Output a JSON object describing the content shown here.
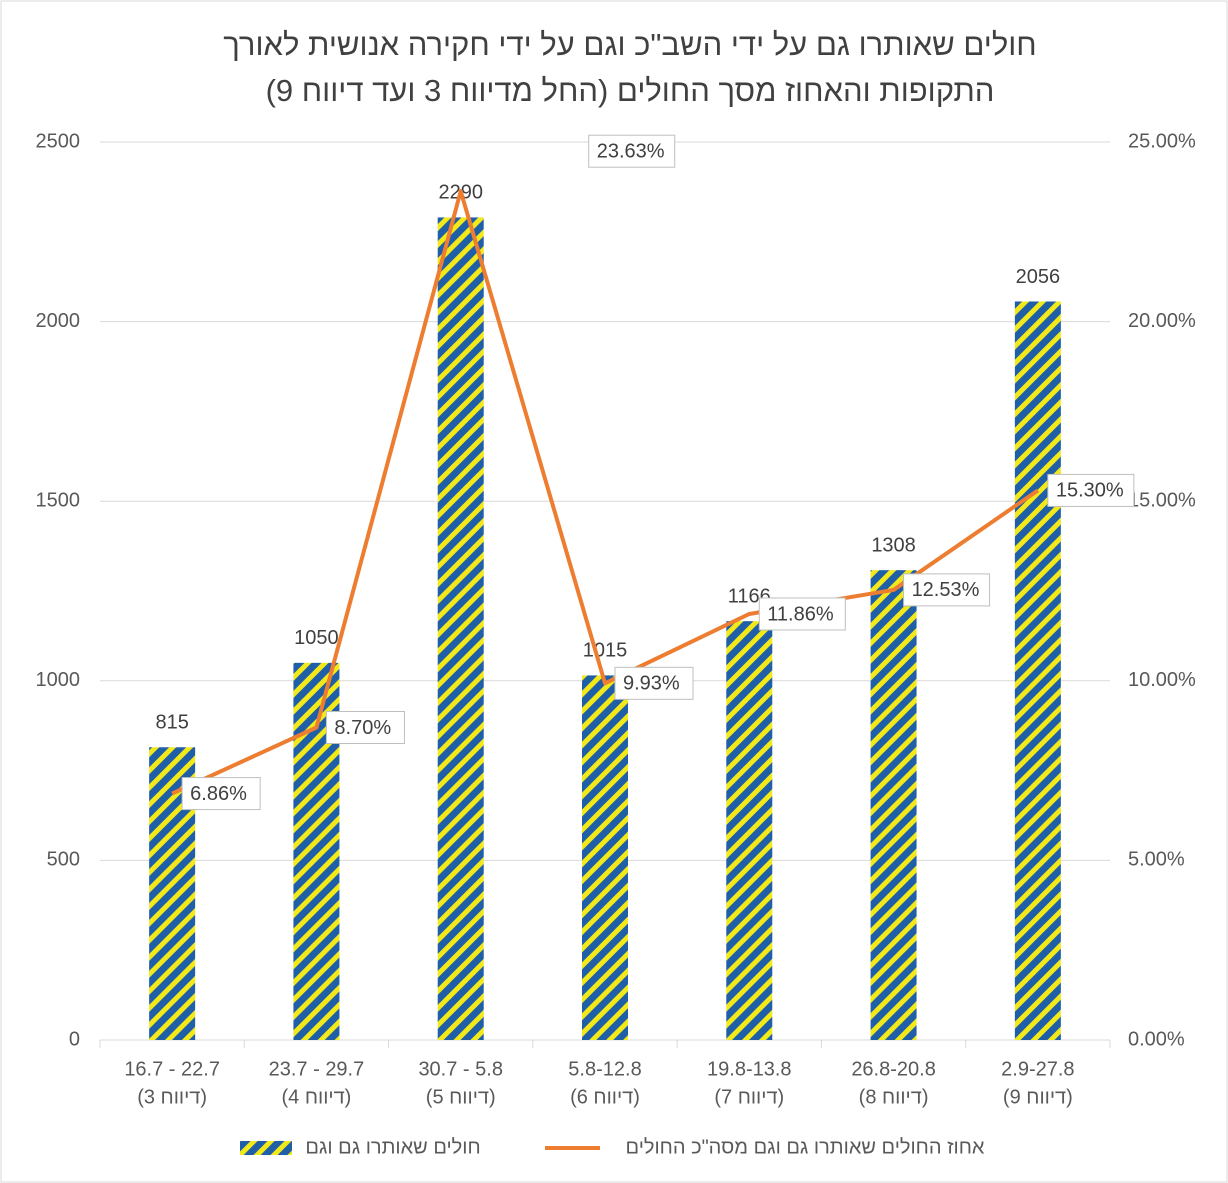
{
  "chart_data": {
    "type": "bar_line",
    "title": [
      "חולים שאותרו גם על ידי השב\"כ וגם על ידי חקירה אנושית לאורך",
      "התקופות והאחוז מסך החולים (החל מדיווח 3 ועד דיווח 9)"
    ],
    "categories": [
      [
        "22.7 - 16.7",
        "(דיווח 3)"
      ],
      [
        "29.7 - 23.7",
        "(דיווח 4)"
      ],
      [
        "5.8 - 30.7",
        "(דיווח 5)"
      ],
      [
        "5.8-12.8",
        "(דיווח 6)"
      ],
      [
        "19.8-13.8",
        "(דיווח 7)"
      ],
      [
        "26.8-20.8",
        "(דיווח 8)"
      ],
      [
        "2.9-27.8",
        "(דיווח 9)"
      ]
    ],
    "series": [
      {
        "name": "חולים שאותרו גם וגם",
        "type": "bar",
        "color": "#1f5fa8",
        "hatch_color": "#f2e81a",
        "values": [
          815,
          1050,
          2290,
          1015,
          1166,
          1308,
          2056
        ]
      },
      {
        "name": "אחוז החולים שאותרו גם וגם מסה\"כ החולים",
        "type": "line",
        "axis": "y2",
        "color": "#ed7d31",
        "values": [
          6.86,
          8.7,
          23.63,
          9.93,
          11.86,
          12.53,
          15.3
        ],
        "value_labels": [
          "6.86%",
          "8.70%",
          "23.63%",
          "9.93%",
          "11.86%",
          "12.53%",
          "15.30%"
        ]
      }
    ],
    "ylim": [
      0,
      2500
    ],
    "yticks": [
      0,
      500,
      1000,
      1500,
      2000,
      2500
    ],
    "y2lim": [
      0,
      25
    ],
    "y2ticks": [
      {
        "value": 0,
        "label": "0.00%"
      },
      {
        "value": 5,
        "label": "5.00%"
      },
      {
        "value": 10,
        "label": "10.00%"
      },
      {
        "value": 15,
        "label": "15.00%"
      },
      {
        "value": 20,
        "label": "20.00%"
      },
      {
        "value": 25,
        "label": "25.00%"
      }
    ],
    "grid": true,
    "legend": "bottom"
  }
}
